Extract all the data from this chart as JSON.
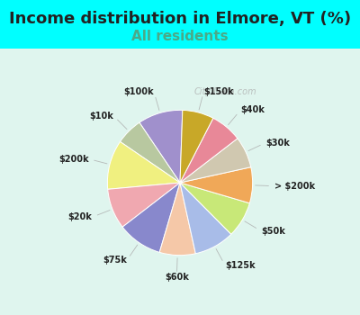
{
  "title": "Income distribution in Elmore, VT (%)",
  "subtitle": "All residents",
  "title_fontsize": 13,
  "subtitle_fontsize": 11,
  "background_color": "#00FFFF",
  "chart_bg": "#f0faf5",
  "labels": [
    "$100k",
    "$10k",
    "$200k",
    "$20k",
    "$75k",
    "$60k",
    "$125k",
    "$50k",
    "> $200k",
    "$30k",
    "$40k",
    "$150k"
  ],
  "sizes": [
    10,
    6,
    11,
    9,
    10,
    8,
    9,
    8,
    8,
    7,
    7,
    7
  ],
  "colors": [
    "#a090cc",
    "#b8c8a0",
    "#f0f080",
    "#f0a8b0",
    "#8888cc",
    "#f5c8a8",
    "#a8bce8",
    "#c8e878",
    "#f0a858",
    "#d0c8b0",
    "#e88898",
    "#c8a828"
  ],
  "startangle": 88,
  "watermark": "City-Data.com"
}
